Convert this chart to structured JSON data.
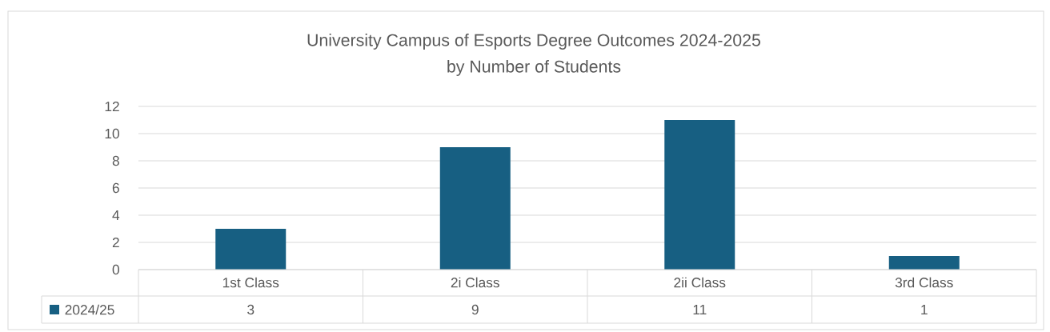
{
  "chart_data": {
    "type": "bar",
    "title": "University Campus of Esports Degree Outcomes 2024-2025",
    "subtitle": "by Number of Students",
    "categories": [
      "1st Class",
      "2i Class",
      "2ii Class",
      "3rd Class"
    ],
    "series": [
      {
        "name": "2024/25",
        "color": "#175f82",
        "values": [
          3,
          9,
          11,
          1
        ]
      }
    ],
    "ylim": [
      0,
      12
    ],
    "yticks": [
      0,
      2,
      4,
      6,
      8,
      10,
      12
    ],
    "grid": "y",
    "legend": "bottom",
    "data_labels": true
  }
}
